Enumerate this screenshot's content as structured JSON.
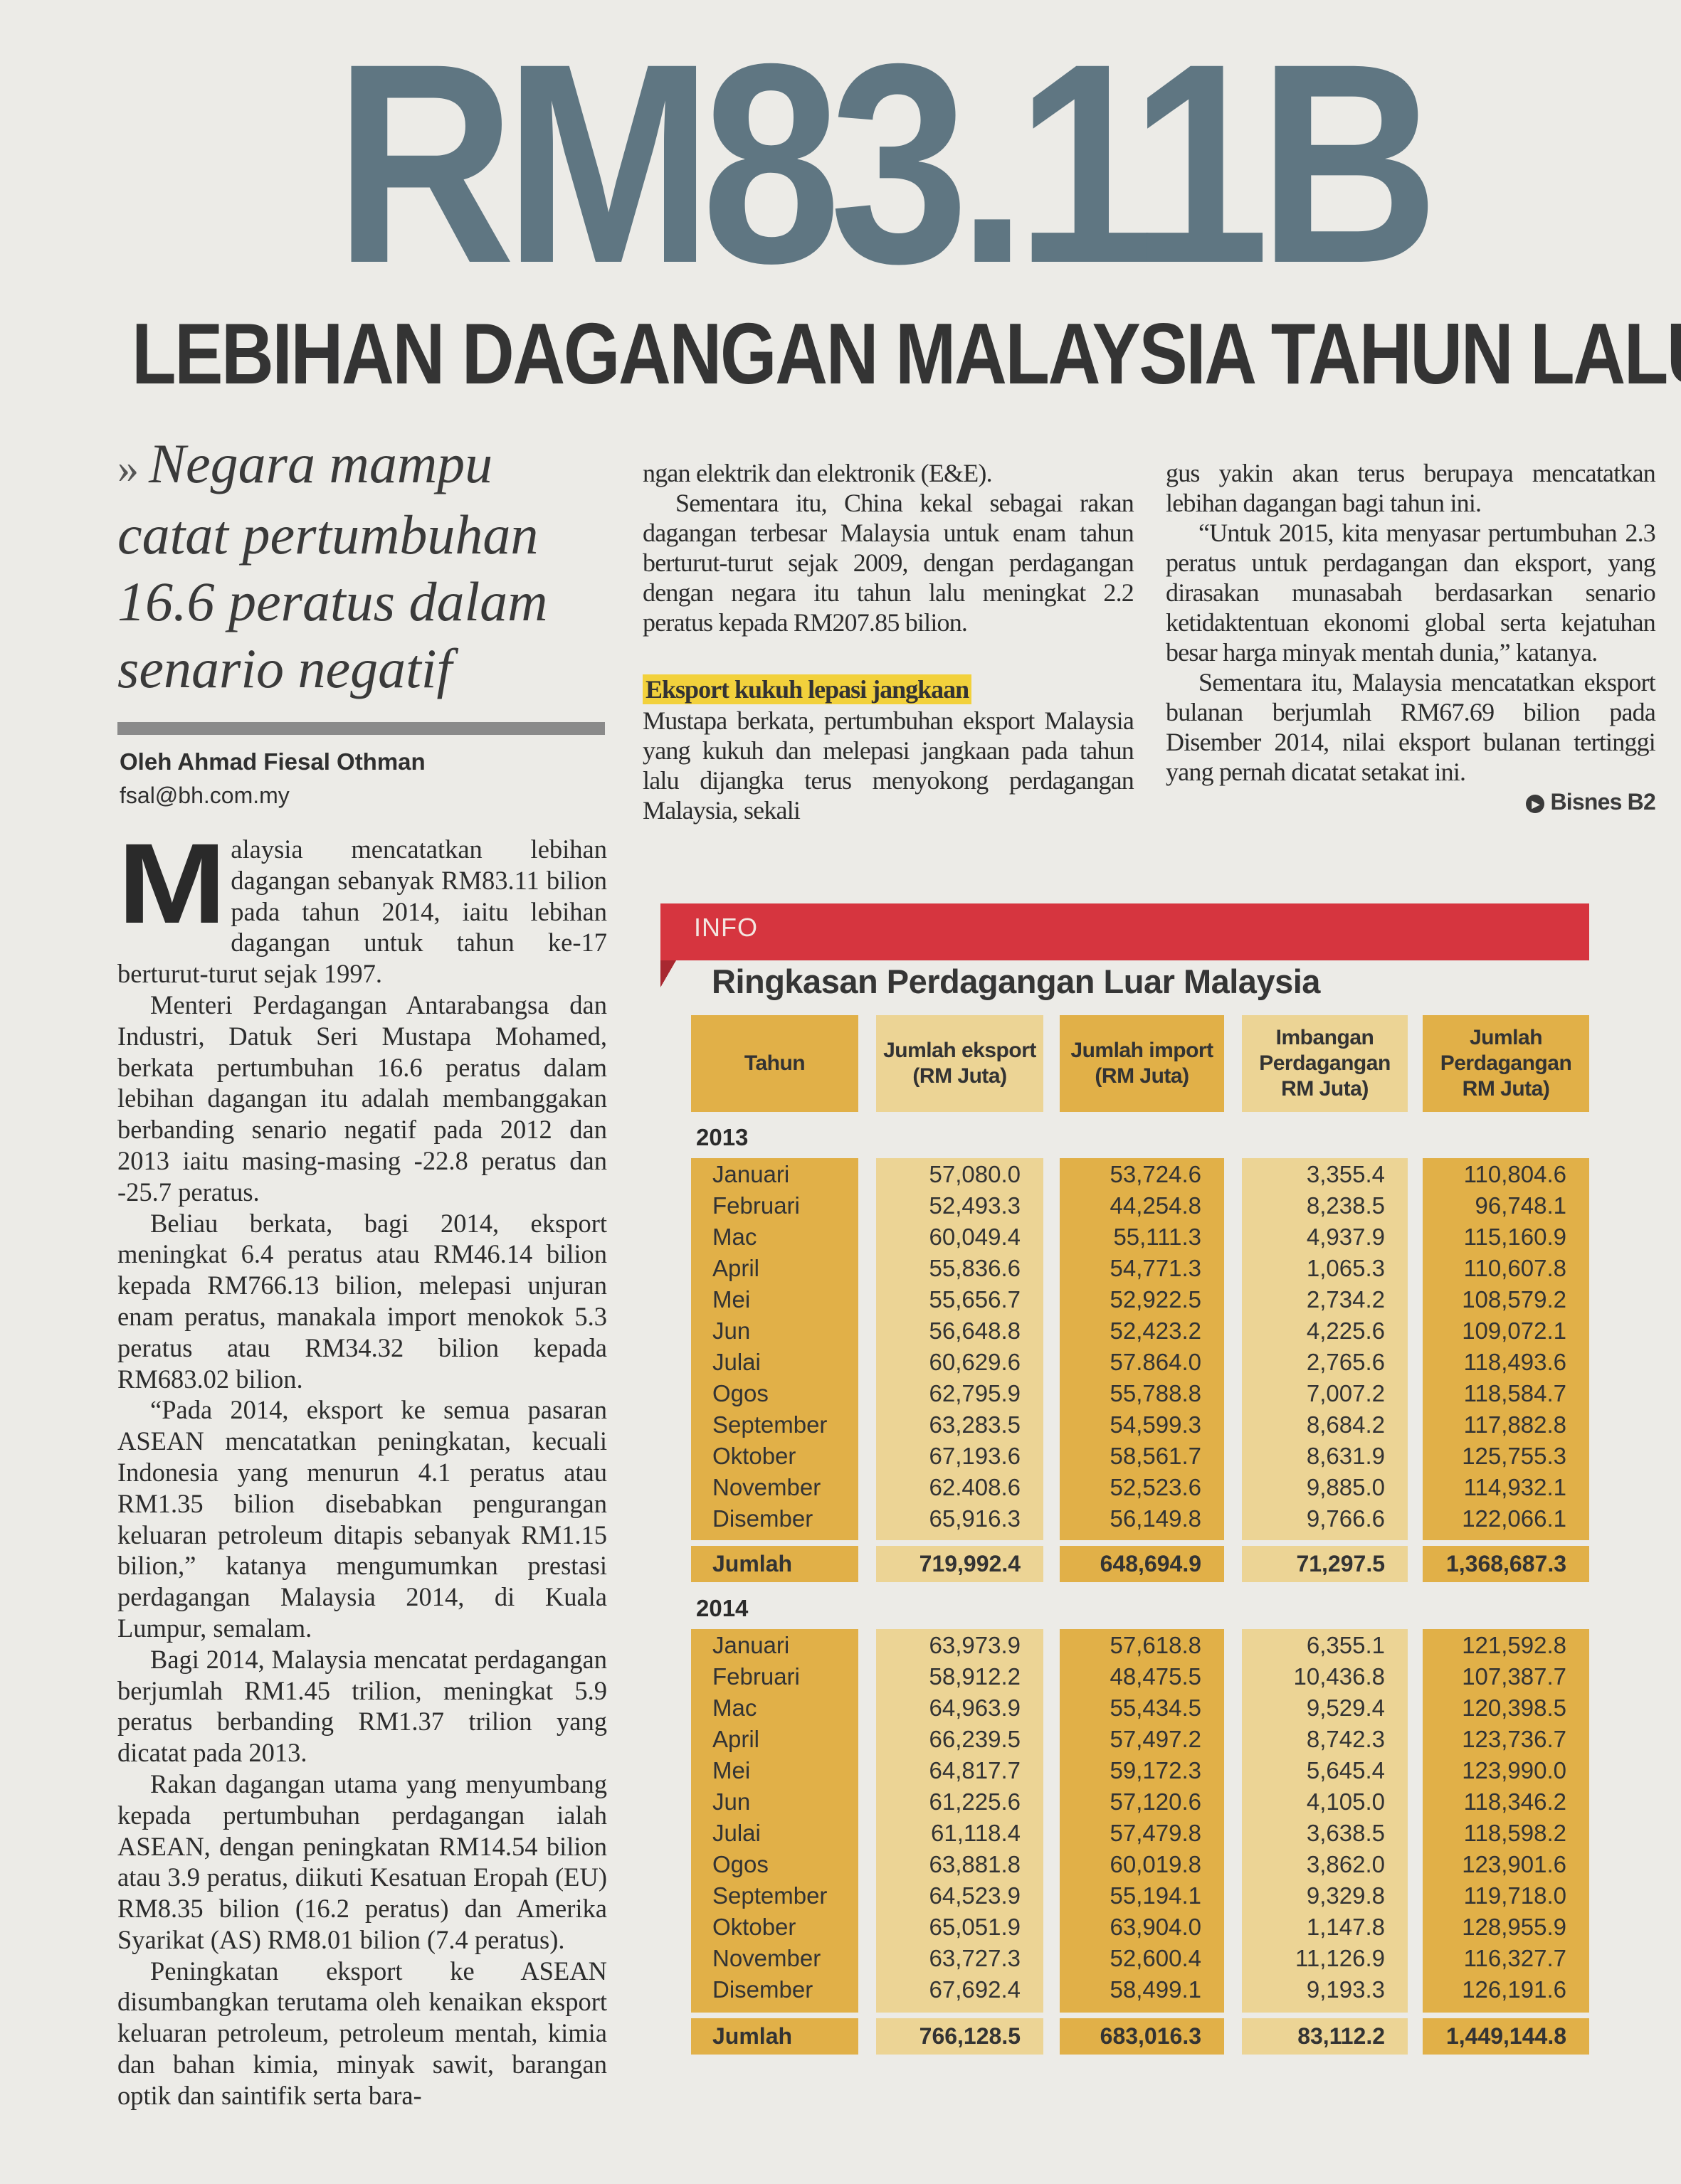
{
  "headline": "RM83.11B",
  "subheadline": "LEBIHAN DAGANGAN MALAYSIA TAHUN LALU",
  "pull_quote": {
    "marker": "»",
    "text": "Negara mampu catat pertumbuhan 16.6 peratus dalam senario negatif"
  },
  "byline": "Oleh Ahmad Fiesal Othman",
  "email": "fsal@bh.com.my",
  "article": {
    "drop_cap": "M",
    "left_paragraphs": [
      "alaysia mencatatkan lebihan dagangan sebanyak RM83.11 bilion pada tahun 2014, iaitu lebihan dagangan untuk tahun ke-17 berturut-turut sejak 1997.",
      "Menteri Perdagangan Antarabangsa dan Industri, Datuk Seri Mustapa Mohamed, berkata pertumbuhan 16.6 peratus dalam lebihan dagangan itu adalah membanggakan berbanding senario negatif pada 2012 dan 2013 iaitu masing-masing -22.8 peratus dan -25.7 peratus.",
      "Beliau berkata, bagi 2014, eksport meningkat 6.4 peratus atau RM46.14 bilion kepada RM766.13 bilion, melepasi unjuran enam peratus, manakala import menokok 5.3 peratus atau RM34.32 bilion kepada RM683.02 bilion.",
      "“Pada 2014, eksport ke semua pasaran ASEAN mencatatkan peningkatan, kecuali Indonesia yang menurun 4.1 peratus atau RM1.35 bilion disebabkan pengurangan keluaran petroleum ditapis sebanyak RM1.15 bilion,” katanya mengumumkan prestasi perdagangan Malaysia 2014, di Kuala Lumpur, semalam.",
      "Bagi 2014, Malaysia mencatat perdagangan berjumlah RM1.45 trilion, meningkat 5.9 peratus berbanding RM1.37 trilion yang dicatat pada 2013.",
      "Rakan dagangan utama yang menyumbang kepada pertumbuhan perdagangan ialah ASEAN, dengan peningkatan RM14.54 bilion atau 3.9 peratus, diikuti Kesatuan Eropah (EU) RM8.35 bilion (16.2 peratus) dan Amerika Syarikat (AS) RM8.01 bilion (7.4 peratus).",
      "Peningkatan eksport ke ASEAN disumbangkan terutama oleh kenaikan eksport keluaran petroleum, petroleum mentah, kimia dan bahan kimia, minyak sawit, barangan optik dan saintifik serta bara-"
    ],
    "middle_paragraphs": [
      "ngan elektrik dan elektronik (E&E).",
      "Sementara itu, China kekal sebagai rakan dagangan terbesar Malaysia untuk enam tahun berturut-turut sejak 2009, dengan perdagangan dengan negara itu tahun lalu meningkat 2.2 peratus kepada RM207.85 bilion."
    ],
    "section_heading": "Eksport kukuh lepasi jangkaan",
    "middle_after_heading": "Mustapa berkata, pertumbuhan eksport Malaysia yang kukuh dan melepasi jangkaan pada tahun lalu dijangka terus menyokong perdagangan Malaysia, sekali",
    "right_paragraphs": [
      "gus yakin akan terus berupaya mencatatkan lebihan dagangan bagi tahun ini.",
      "“Untuk 2015, kita menyasar pertumbuhan 2.3 peratus untuk perdagangan dan eksport, yang dirasakan munasabah berdasarkan senario ketidaktentuan ekonomi global serta kejatuhan besar harga minyak mentah dunia,” katanya.",
      "Sementara itu, Malaysia mencatatkan eksport bulanan berjumlah RM67.69 bilion pada Disember 2014, nilai eksport bulanan tertinggi yang pernah dicatat setakat ini."
    ],
    "continued_ref": {
      "icon": "play-circle-icon",
      "label": "Bisnes B2"
    }
  },
  "info_box": {
    "label": "INFO",
    "title": "Ringkasan Perdagangan Luar Malaysia",
    "colors": {
      "bar": "#d6353f",
      "dark_column": "#e1b048",
      "light_column": "#ecd495",
      "heading_highlight": "#f2d13c"
    },
    "columns": [
      "Tahun",
      "Jumlah eksport (RM Juta)",
      "Jumlah import (RM Juta)",
      "Imbangan Perdagangan RM Juta)",
      "Jumlah Perdagangan RM Juta)"
    ],
    "total_label": "Jumlah",
    "years": [
      {
        "year": "2013",
        "rows": [
          [
            "Januari",
            "57,080.0",
            "53,724.6",
            "3,355.4",
            "110,804.6"
          ],
          [
            "Februari",
            "52,493.3",
            "44,254.8",
            "8,238.5",
            "96,748.1"
          ],
          [
            "Mac",
            "60,049.4",
            "55,111.3",
            "4,937.9",
            "115,160.9"
          ],
          [
            "April",
            "55,836.6",
            "54,771.3",
            "1,065.3",
            "110,607.8"
          ],
          [
            "Mei",
            "55,656.7",
            "52,922.5",
            "2,734.2",
            "108,579.2"
          ],
          [
            "Jun",
            "56,648.8",
            "52,423.2",
            "4,225.6",
            "109,072.1"
          ],
          [
            "Julai",
            "60,629.6",
            "57.864.0",
            "2,765.6",
            "118,493.6"
          ],
          [
            "Ogos",
            "62,795.9",
            "55,788.8",
            "7,007.2",
            "118,584.7"
          ],
          [
            "September",
            "63,283.5",
            "54,599.3",
            "8,684.2",
            "117,882.8"
          ],
          [
            "Oktober",
            "67,193.6",
            "58,561.7",
            "8,631.9",
            "125,755.3"
          ],
          [
            "November",
            "62.408.6",
            "52,523.6",
            "9,885.0",
            "114,932.1"
          ],
          [
            "Disember",
            "65,916.3",
            "56,149.8",
            "9,766.6",
            "122,066.1"
          ]
        ],
        "totals": [
          "719,992.4",
          "648,694.9",
          "71,297.5",
          "1,368,687.3"
        ]
      },
      {
        "year": "2014",
        "rows": [
          [
            "Januari",
            "63,973.9",
            "57,618.8",
            "6,355.1",
            "121,592.8"
          ],
          [
            "Februari",
            "58,912.2",
            "48,475.5",
            "10,436.8",
            "107,387.7"
          ],
          [
            "Mac",
            "64,963.9",
            "55,434.5",
            "9,529.4",
            "120,398.5"
          ],
          [
            "April",
            "66,239.5",
            "57,497.2",
            "8,742.3",
            "123,736.7"
          ],
          [
            "Mei",
            "64,817.7",
            "59,172.3",
            "5,645.4",
            "123,990.0"
          ],
          [
            "Jun",
            "61,225.6",
            "57,120.6",
            "4,105.0",
            "118,346.2"
          ],
          [
            "Julai",
            "61,118.4",
            "57,479.8",
            "3,638.5",
            "118,598.2"
          ],
          [
            "Ogos",
            "63,881.8",
            "60,019.8",
            "3,862.0",
            "123,901.6"
          ],
          [
            "September",
            "64,523.9",
            "55,194.1",
            "9,329.8",
            "119,718.0"
          ],
          [
            "Oktober",
            "65,051.9",
            "63,904.0",
            "1,147.8",
            "128,955.9"
          ],
          [
            "November",
            "63,727.3",
            "52,600.4",
            "11,126.9",
            "116,327.7"
          ],
          [
            "Disember",
            "67,692.4",
            "58,499.1",
            "9,193.3",
            "126,191.6"
          ]
        ],
        "totals": [
          "766,128.5",
          "683,016.3",
          "83,112.2",
          "1,449,144.8"
        ]
      }
    ]
  }
}
